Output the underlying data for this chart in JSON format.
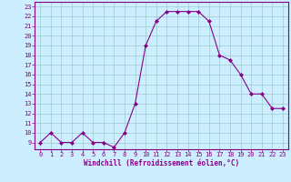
{
  "x": [
    0,
    1,
    2,
    3,
    4,
    5,
    6,
    7,
    8,
    9,
    10,
    11,
    12,
    13,
    14,
    15,
    16,
    17,
    18,
    19,
    20,
    21,
    22,
    23
  ],
  "y": [
    9.0,
    10.0,
    9.0,
    9.0,
    10.0,
    9.0,
    9.0,
    8.5,
    10.0,
    13.0,
    19.0,
    21.5,
    22.5,
    22.5,
    22.5,
    22.5,
    21.5,
    18.0,
    17.5,
    16.0,
    14.0,
    14.0,
    12.5,
    12.5
  ],
  "line_color": "#880088",
  "marker": "D",
  "marker_size": 2.0,
  "bg_color": "#cceeff",
  "grid_color": "#99cccc",
  "xlabel": "Windchill (Refroidissement éolien,°C)",
  "xlabel_color": "#880088",
  "tick_color": "#880088",
  "spine_color": "#880088",
  "ylim": [
    8.3,
    23.5
  ],
  "xlim": [
    -0.5,
    23.5
  ],
  "yticks": [
    9,
    10,
    11,
    12,
    13,
    14,
    15,
    16,
    17,
    18,
    19,
    20,
    21,
    22,
    23
  ],
  "xticks": [
    0,
    1,
    2,
    3,
    4,
    5,
    6,
    7,
    8,
    9,
    10,
    11,
    12,
    13,
    14,
    15,
    16,
    17,
    18,
    19,
    20,
    21,
    22,
    23
  ],
  "tick_fontsize": 5.0,
  "xlabel_fontsize": 5.5
}
